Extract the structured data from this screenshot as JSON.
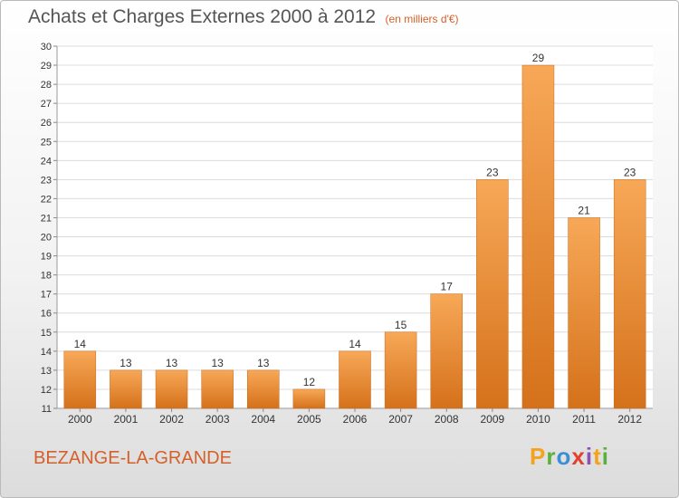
{
  "header": {
    "title": "Achats et Charges Externes 2000 à 2012",
    "unit": "(en milliers d'€)"
  },
  "footer": {
    "commune": "BEZANGE-LA-GRANDE",
    "logo_letters": [
      "P",
      "r",
      "o",
      "x",
      "i",
      "t",
      "i"
    ],
    "logo_colors": [
      "#f5a21c",
      "#5ab03c",
      "#3a8fd6",
      "#e53e2f",
      "#8c4fb6",
      "#f5a21c",
      "#5ab03c"
    ]
  },
  "colors": {
    "bar_top": "#f7a857",
    "bar_bottom": "#d5711b",
    "accent": "#d4602a",
    "grid": "#dcdcdc",
    "axis_text": "#333333"
  },
  "chart_data": {
    "type": "bar",
    "categories": [
      "2000",
      "2001",
      "2002",
      "2003",
      "2004",
      "2005",
      "2006",
      "2007",
      "2008",
      "2009",
      "2010",
      "2011",
      "2012"
    ],
    "values": [
      14,
      13,
      13,
      13,
      13,
      12,
      14,
      15,
      17,
      23,
      29,
      21,
      23
    ],
    "ylim": [
      11,
      30
    ],
    "yticks": [
      11,
      12,
      13,
      14,
      15,
      16,
      17,
      18,
      19,
      20,
      21,
      22,
      23,
      24,
      25,
      26,
      27,
      28,
      29,
      30
    ],
    "grid": true,
    "data_labels": true
  }
}
